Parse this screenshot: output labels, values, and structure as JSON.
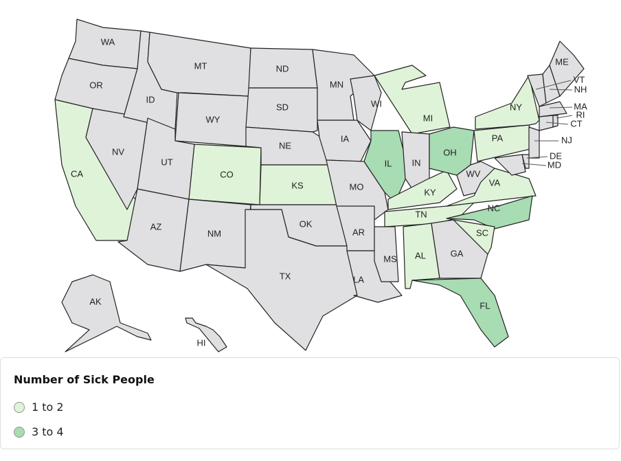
{
  "colors": {
    "none": "#e0e0e2",
    "1 to 2": "#dff3d8",
    "3 to 4": "#a8dcb3",
    "border": "#222222"
  },
  "legend": {
    "title": "Number of Sick People",
    "items": [
      {
        "label": "1 to 2",
        "color": "#dff3d8"
      },
      {
        "label": "3 to 4",
        "color": "#a8dcb3"
      }
    ]
  },
  "states": [
    {
      "abbr": "WA",
      "category": "none"
    },
    {
      "abbr": "OR",
      "category": "none"
    },
    {
      "abbr": "CA",
      "category": "1 to 2"
    },
    {
      "abbr": "NV",
      "category": "none"
    },
    {
      "abbr": "ID",
      "category": "none"
    },
    {
      "abbr": "MT",
      "category": "none"
    },
    {
      "abbr": "WY",
      "category": "none"
    },
    {
      "abbr": "UT",
      "category": "none"
    },
    {
      "abbr": "CO",
      "category": "1 to 2"
    },
    {
      "abbr": "AZ",
      "category": "none"
    },
    {
      "abbr": "NM",
      "category": "none"
    },
    {
      "abbr": "ND",
      "category": "none"
    },
    {
      "abbr": "SD",
      "category": "none"
    },
    {
      "abbr": "NE",
      "category": "none"
    },
    {
      "abbr": "KS",
      "category": "1 to 2"
    },
    {
      "abbr": "OK",
      "category": "none"
    },
    {
      "abbr": "TX",
      "category": "none"
    },
    {
      "abbr": "MN",
      "category": "none"
    },
    {
      "abbr": "IA",
      "category": "none"
    },
    {
      "abbr": "MO",
      "category": "none"
    },
    {
      "abbr": "AR",
      "category": "none"
    },
    {
      "abbr": "LA",
      "category": "none"
    },
    {
      "abbr": "WI",
      "category": "none"
    },
    {
      "abbr": "IL",
      "category": "3 to 4"
    },
    {
      "abbr": "MS",
      "category": "none"
    },
    {
      "abbr": "MI",
      "category": "1 to 2"
    },
    {
      "abbr": "IN",
      "category": "none"
    },
    {
      "abbr": "KY",
      "category": "1 to 2"
    },
    {
      "abbr": "TN",
      "category": "1 to 2"
    },
    {
      "abbr": "AL",
      "category": "1 to 2"
    },
    {
      "abbr": "OH",
      "category": "3 to 4"
    },
    {
      "abbr": "WV",
      "category": "none"
    },
    {
      "abbr": "VA",
      "category": "1 to 2"
    },
    {
      "abbr": "NC",
      "category": "3 to 4"
    },
    {
      "abbr": "SC",
      "category": "1 to 2"
    },
    {
      "abbr": "GA",
      "category": "none"
    },
    {
      "abbr": "FL",
      "category": "3 to 4"
    },
    {
      "abbr": "PA",
      "category": "1 to 2"
    },
    {
      "abbr": "NY",
      "category": "1 to 2"
    },
    {
      "abbr": "VT",
      "category": "none"
    },
    {
      "abbr": "NH",
      "category": "none"
    },
    {
      "abbr": "ME",
      "category": "none"
    },
    {
      "abbr": "MA",
      "category": "none"
    },
    {
      "abbr": "RI",
      "category": "none"
    },
    {
      "abbr": "CT",
      "category": "none"
    },
    {
      "abbr": "NJ",
      "category": "none"
    },
    {
      "abbr": "DE",
      "category": "none"
    },
    {
      "abbr": "MD",
      "category": "none"
    },
    {
      "abbr": "AK",
      "category": "none"
    },
    {
      "abbr": "HI",
      "category": "none"
    }
  ]
}
